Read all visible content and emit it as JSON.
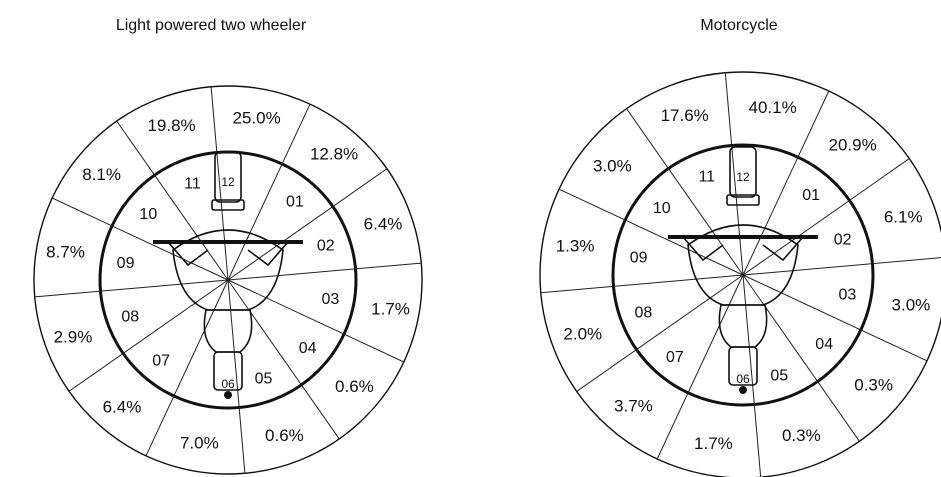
{
  "diagrams": [
    {
      "title": "Light powered two wheeler",
      "sectors": [
        {
          "clock": "12",
          "pct": "25.0%"
        },
        {
          "clock": "01",
          "pct": "12.8%"
        },
        {
          "clock": "02",
          "pct": "6.4%"
        },
        {
          "clock": "03",
          "pct": "1.7%"
        },
        {
          "clock": "04",
          "pct": "0.6%"
        },
        {
          "clock": "05",
          "pct": "0.6%"
        },
        {
          "clock": "06",
          "pct": "7.0%"
        },
        {
          "clock": "07",
          "pct": "6.4%"
        },
        {
          "clock": "08",
          "pct": "2.9%"
        },
        {
          "clock": "09",
          "pct": "8.7%"
        },
        {
          "clock": "10",
          "pct": "8.1%"
        },
        {
          "clock": "11",
          "pct": "19.8%"
        }
      ]
    },
    {
      "title": "Motorcycle",
      "sectors": [
        {
          "clock": "12",
          "pct": "40.1%"
        },
        {
          "clock": "01",
          "pct": "20.9%"
        },
        {
          "clock": "02",
          "pct": "6.1%"
        },
        {
          "clock": "03",
          "pct": "3.0%"
        },
        {
          "clock": "04",
          "pct": "0.3%"
        },
        {
          "clock": "05",
          "pct": "0.3%"
        },
        {
          "clock": "06",
          "pct": "1.7%"
        },
        {
          "clock": "07",
          "pct": "3.7%"
        },
        {
          "clock": "08",
          "pct": "2.0%"
        },
        {
          "clock": "09",
          "pct": "1.3%"
        },
        {
          "clock": "10",
          "pct": "3.0%"
        },
        {
          "clock": "11",
          "pct": "17.6%"
        }
      ]
    }
  ]
}
